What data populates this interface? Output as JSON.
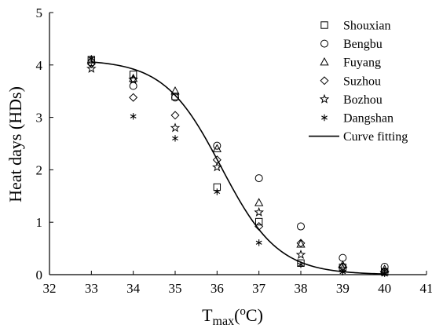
{
  "chart_data": {
    "type": "scatter",
    "xlabel": {
      "base": "T",
      "sub": "max",
      "paren_open": "(",
      "sup": "o",
      "unit": "C",
      "paren_close": ")"
    },
    "ylabel": "Heat days (HDs)",
    "xlim": [
      32,
      41
    ],
    "ylim": [
      0,
      5
    ],
    "xticks": [
      32,
      33,
      34,
      35,
      36,
      37,
      38,
      39,
      40,
      41
    ],
    "yticks": [
      0,
      1,
      2,
      3,
      4,
      5
    ],
    "grid": false,
    "legend_position": "top-right",
    "series": [
      {
        "name": "Shouxian",
        "marker": "square",
        "points": [
          [
            33,
            4.1
          ],
          [
            34,
            3.82
          ],
          [
            35,
            3.4
          ],
          [
            36,
            1.67
          ],
          [
            37,
            1.01
          ],
          [
            38,
            0.22
          ],
          [
            39,
            0.14
          ],
          [
            40,
            0.05
          ]
        ]
      },
      {
        "name": "Bengbu",
        "marker": "circle",
        "points": [
          [
            33,
            4.05
          ],
          [
            34,
            3.6
          ],
          [
            35,
            3.38
          ],
          [
            36,
            2.46
          ],
          [
            37,
            1.84
          ],
          [
            38,
            0.92
          ],
          [
            39,
            0.32
          ],
          [
            40,
            0.15
          ]
        ]
      },
      {
        "name": "Fuyang",
        "marker": "triangle",
        "points": [
          [
            33,
            4.1
          ],
          [
            34,
            3.74
          ],
          [
            35,
            3.5
          ],
          [
            36,
            2.4
          ],
          [
            37,
            1.37
          ],
          [
            38,
            0.58
          ],
          [
            39,
            0.18
          ],
          [
            40,
            0.1
          ]
        ]
      },
      {
        "name": "Suzhou",
        "marker": "diamond",
        "points": [
          [
            33,
            4.02
          ],
          [
            34,
            3.38
          ],
          [
            35,
            3.04
          ],
          [
            36,
            2.19
          ],
          [
            37,
            0.92
          ],
          [
            38,
            0.6
          ],
          [
            39,
            0.15
          ],
          [
            40,
            0.06
          ]
        ]
      },
      {
        "name": "Bozhou",
        "marker": "star",
        "points": [
          [
            33,
            3.93
          ],
          [
            34,
            3.72
          ],
          [
            35,
            2.8
          ],
          [
            36,
            2.05
          ],
          [
            37,
            1.19
          ],
          [
            38,
            0.38
          ],
          [
            39,
            0.12
          ],
          [
            40,
            0.04
          ]
        ]
      },
      {
        "name": "Dangshan",
        "marker": "asterisk",
        "points": [
          [
            33,
            4.12
          ],
          [
            34,
            3.02
          ],
          [
            35,
            2.6
          ],
          [
            36,
            1.58
          ],
          [
            37,
            0.61
          ],
          [
            38,
            0.19
          ],
          [
            39,
            0.05
          ],
          [
            40,
            0.02
          ]
        ]
      }
    ],
    "fit": {
      "name": "Curve fitting",
      "type": "logistic",
      "top": 4.1,
      "midpoint": 36.1,
      "scale": 0.68,
      "x_range": [
        33,
        40
      ]
    }
  }
}
